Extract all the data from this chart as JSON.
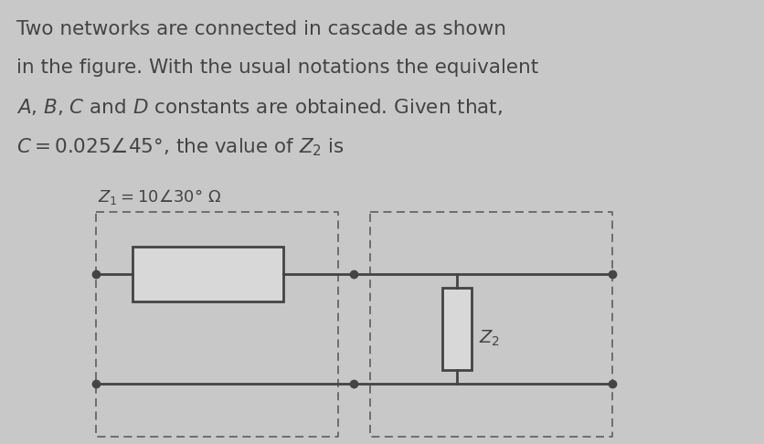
{
  "bg_color": "#c8c8c8",
  "text_color": "#444444",
  "line_color": "#444444",
  "box_color": "#e8e8e8",
  "dash_color": "#666666",
  "fig_width": 8.37,
  "fig_height": 4.86,
  "label_z1": "Z₁ = 10∄30° Ω",
  "label_z2": "Z₂"
}
